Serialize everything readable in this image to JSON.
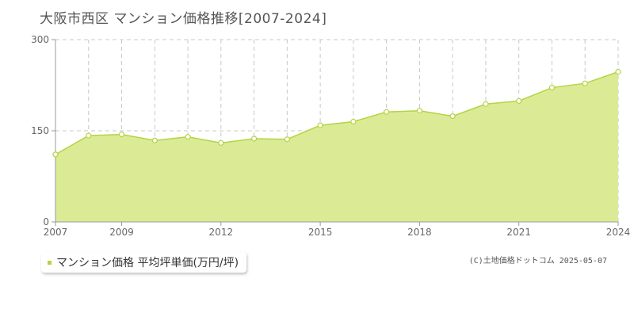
{
  "title": "大阪市西区 マンション価格推移[2007-2024]",
  "legend": {
    "label": "マンション価格 平均坪単価(万円/坪)"
  },
  "credit": "(C)土地価格ドットコム 2025-05-07",
  "colors": {
    "fill": "#dbeb95",
    "line": "#b3d444",
    "marker_fill": "#ffffff",
    "marker_stroke": "#b3d444",
    "grid": "#c8c8c8",
    "axis": "#999999"
  },
  "chart_data": {
    "type": "area",
    "x": [
      2007,
      2008,
      2009,
      2010,
      2011,
      2012,
      2013,
      2014,
      2015,
      2016,
      2017,
      2018,
      2019,
      2020,
      2021,
      2022,
      2023,
      2024
    ],
    "series": [
      {
        "name": "マンション価格 平均坪単価(万円/坪)",
        "values": [
          111,
          142,
          144,
          134,
          140,
          130,
          137,
          136,
          159,
          165,
          181,
          183,
          174,
          194,
          199,
          221,
          228,
          247
        ]
      }
    ],
    "xlim": [
      2007,
      2024
    ],
    "ylim": [
      0,
      300
    ],
    "yticks": [
      0,
      150,
      300
    ],
    "xtick_labels": [
      "2007",
      "2009",
      "2012",
      "2015",
      "2018",
      "2021",
      "2024"
    ],
    "grid": true,
    "legend_position": "bottom-left"
  }
}
